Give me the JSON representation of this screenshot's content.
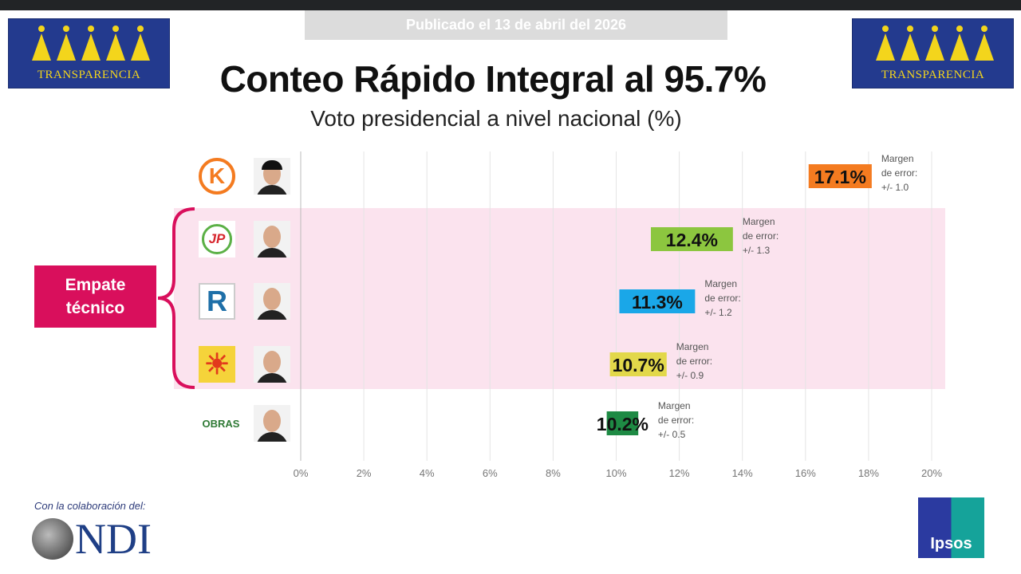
{
  "header": {
    "published": "Publicado el 13 de abril del 2026",
    "title": "Conteo Rápido Integral al 95.7%",
    "subtitle": "Voto presidencial a nivel nacional (%)",
    "logo_text": "TRANSPARENCIA"
  },
  "annotation": {
    "tie_label_1": "Empate",
    "tie_label_2": "técnico"
  },
  "footer": {
    "collab": "Con la colaboración del:",
    "ndi": "NDI",
    "ipsos": "Ipsos"
  },
  "chart_data": {
    "type": "bar",
    "title": "Conteo Rápido Integral al 95.7%",
    "subtitle": "Voto presidencial a nivel nacional (%)",
    "xlim": [
      0,
      20
    ],
    "ticks": [
      "0%",
      "2%",
      "4%",
      "6%",
      "8%",
      "10%",
      "12%",
      "14%",
      "16%",
      "18%",
      "20%"
    ],
    "grid": true,
    "margin_label": [
      "Margen",
      "de error:"
    ],
    "series": [
      {
        "party_logo": "K",
        "value": 17.1,
        "label": "17.1%",
        "margin": 1.0,
        "margin_text": "+/- 1.0",
        "color": "#f47b20",
        "logo_color": "#f47b20"
      },
      {
        "party_logo": "JP",
        "value": 12.4,
        "label": "12.4%",
        "margin": 1.3,
        "margin_text": "+/- 1.3",
        "color": "#8cc63f",
        "logo_color": "#d7262e"
      },
      {
        "party_logo": "R",
        "value": 11.3,
        "label": "11.3%",
        "margin": 1.2,
        "margin_text": "+/- 1.2",
        "color": "#1aa7e8",
        "logo_color": "#1e6fa8"
      },
      {
        "party_logo": "sun",
        "value": 10.7,
        "label": "10.7%",
        "margin": 0.9,
        "margin_text": "+/- 0.9",
        "color": "#e2d84a",
        "logo_color": "#e23a1c"
      },
      {
        "party_logo": "OBRAS",
        "value": 10.2,
        "label": "10.2%",
        "margin": 0.5,
        "margin_text": "+/- 0.5",
        "color": "#1e8a44",
        "logo_color": "#2f7a35"
      }
    ],
    "tie_group": [
      1,
      2,
      3,
      4
    ]
  }
}
